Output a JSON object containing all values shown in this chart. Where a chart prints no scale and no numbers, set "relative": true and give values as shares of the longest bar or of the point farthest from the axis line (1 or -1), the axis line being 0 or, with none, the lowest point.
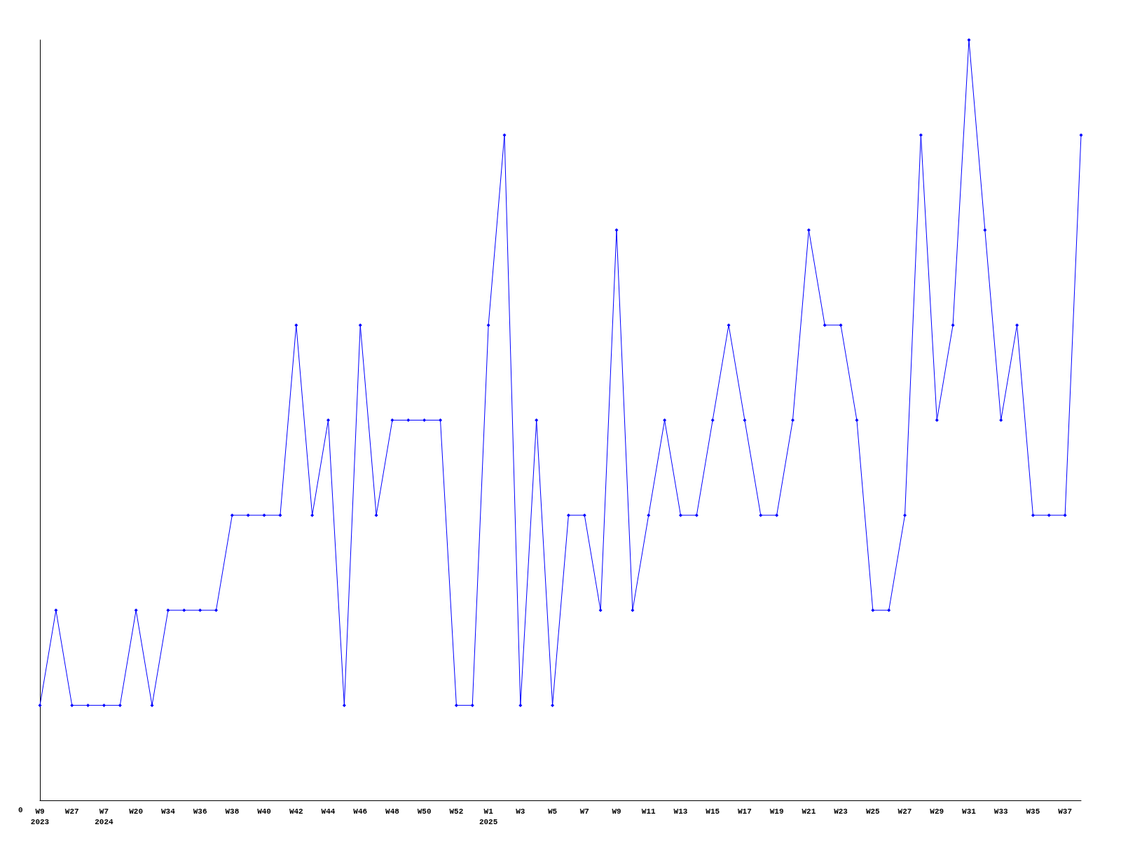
{
  "chart_data": {
    "type": "line",
    "relative": true,
    "color": "#0000ff",
    "marker": "diamond",
    "grid": false,
    "annotations": [
      "0"
    ],
    "categories": [
      "W9\n2023",
      null,
      "W27",
      null,
      "W7\n2024",
      null,
      "W20",
      null,
      "W34",
      null,
      "W36",
      null,
      "W38",
      null,
      "W40",
      null,
      "W42",
      null,
      "W44",
      null,
      "W46",
      null,
      "W48",
      null,
      "W50",
      null,
      "W52",
      null,
      "W1\n2025",
      null,
      "W3",
      null,
      "W5",
      null,
      "W7",
      null,
      "W9",
      null,
      "W11",
      null,
      "W13",
      null,
      "W15",
      null,
      "W17",
      null,
      "W19",
      null,
      "W21",
      null,
      "W23",
      null,
      "W25",
      null,
      "W27",
      null,
      "W29",
      null,
      "W31",
      null,
      "W33",
      null,
      "W35",
      null,
      "W37",
      null
    ],
    "values": [
      0.125,
      0.25,
      0.125,
      0.125,
      0.125,
      0.125,
      0.25,
      0.125,
      0.25,
      0.25,
      0.25,
      0.25,
      0.375,
      0.375,
      0.375,
      0.375,
      0.625,
      0.375,
      0.5,
      0.125,
      0.625,
      0.375,
      0.5,
      0.5,
      0.5,
      0.5,
      0.125,
      0.125,
      0.625,
      0.875,
      0.125,
      0.5,
      0.125,
      0.375,
      0.375,
      0.25,
      0.75,
      0.25,
      0.375,
      0.5,
      0.375,
      0.375,
      0.5,
      0.625,
      0.5,
      0.375,
      0.375,
      0.5,
      0.75,
      0.625,
      0.625,
      0.5,
      0.25,
      0.25,
      0.375,
      0.875,
      0.5,
      0.625,
      1,
      0.75,
      0.5,
      0.625,
      0.375,
      0.375,
      0.375,
      0.875
    ]
  }
}
